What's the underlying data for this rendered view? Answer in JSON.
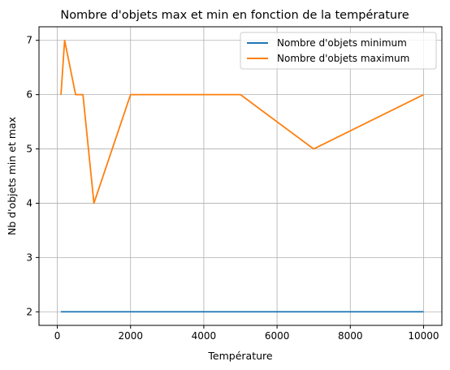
{
  "chart_data": {
    "type": "line",
    "title": "Nombre d'objets max et min en fonction de la température",
    "xlabel": "Température",
    "ylabel": "Nb d'objets min et max",
    "xlim": [
      -500,
      10500
    ],
    "ylim": [
      1.75,
      7.25
    ],
    "xticks": [
      0,
      2000,
      4000,
      6000,
      8000,
      10000
    ],
    "yticks": [
      2,
      3,
      4,
      5,
      6,
      7
    ],
    "grid": true,
    "legend": "top-right",
    "x": [
      100,
      200,
      500,
      700,
      1000,
      2000,
      3000,
      5000,
      7000,
      10000
    ],
    "series": [
      {
        "name": "Nombre d'objets minimum",
        "color": "#1f77b4",
        "values": [
          2,
          2,
          2,
          2,
          2,
          2,
          2,
          2,
          2,
          2
        ]
      },
      {
        "name": "Nombre d'objets maximum",
        "color": "#ff7f0e",
        "values": [
          6,
          7,
          6,
          6,
          4,
          6,
          6,
          6,
          5,
          6
        ]
      }
    ]
  }
}
